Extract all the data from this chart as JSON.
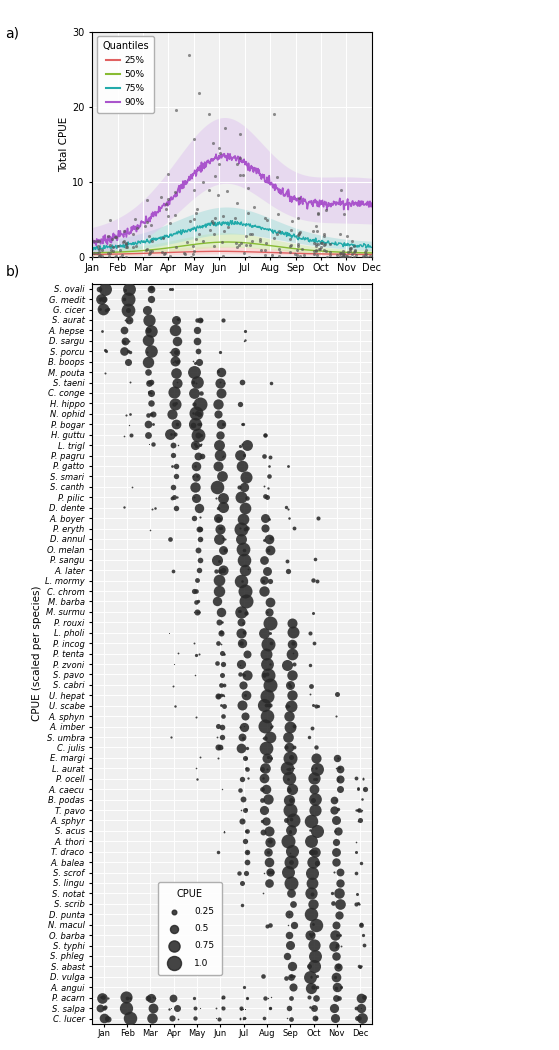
{
  "panel_a": {
    "ylabel": "Total CPUE",
    "ylim": [
      0,
      30
    ],
    "months": [
      "Jan",
      "Feb",
      "Mar",
      "Apr",
      "May",
      "Jun",
      "Jul",
      "Aug",
      "Sep",
      "Oct",
      "Nov",
      "Dec"
    ],
    "quantile_fill_colors": {
      "25%": "#ffcccc",
      "50%": "#d4edaa",
      "75%": "#aadddd",
      "90%": "#ddbfee"
    },
    "quantile_line_colors": {
      "25%": "#e06060",
      "50%": "#88bb33",
      "75%": "#22aaaa",
      "90%": "#aa55cc"
    },
    "scatter_color": "#555555",
    "background": "#f0f0f0",
    "rug_positions": [
      4.2,
      4.6,
      5.0,
      5.1,
      5.3,
      5.5,
      5.7,
      5.9,
      6.1,
      6.5,
      6.7,
      7.0,
      7.2
    ]
  },
  "panel_b": {
    "ylabel": "CPUE (scaled per species)",
    "species": [
      "S. ovali",
      "G. medit",
      "G. cicer",
      "S. aurat",
      "A. hepse",
      "D. sargu",
      "S. porcu",
      "B. boops",
      "M. pouta",
      "S. taeni",
      "C. conge",
      "H. hippo",
      "N. ophid",
      "P. bogar",
      "H. guttu",
      "L. trigl",
      "P. pagru",
      "P. gatto",
      "S. smari",
      "S. canth",
      "P. pilic",
      "D. dente",
      "A. boyer",
      "P. eryth",
      "D. annul",
      "O. melan",
      "P. sangu",
      "A. later",
      "L. mormy",
      "C. chrom",
      "M. barba",
      "M. surmu",
      "P. rouxi",
      "L. pholi",
      "P. incog",
      "P. tenta",
      "P. zvoni",
      "S. pavo",
      "S. cabri",
      "U. hepat",
      "U. scabe",
      "A. sphyn",
      "A. imber",
      "S. umbra",
      "C. julis",
      "E. margi",
      "L. aurat",
      "P. ocell",
      "A. caecu",
      "B. podas",
      "T. pavo",
      "A. sphyr",
      "S. acus",
      "A. thori",
      "T. draco",
      "A. balea",
      "S. scrof",
      "S. lingu",
      "S. notat",
      "S. scrib",
      "D. punta",
      "N. macul",
      "O. barba",
      "S. typhi",
      "S. phleg",
      "S. abast",
      "D. vulga",
      "A. angui",
      "P. acarn",
      "S. salpa",
      "C. lucer"
    ],
    "months": [
      "Jan",
      "Feb",
      "Mar",
      "Apr",
      "May",
      "Jun",
      "Jul",
      "Aug",
      "Sep",
      "Oct",
      "Nov",
      "Dec"
    ],
    "dot_color": "#2a2a2a",
    "background": "#f0f0f0",
    "legend_sizes": [
      0.25,
      0.5,
      0.75,
      1.0
    ]
  }
}
